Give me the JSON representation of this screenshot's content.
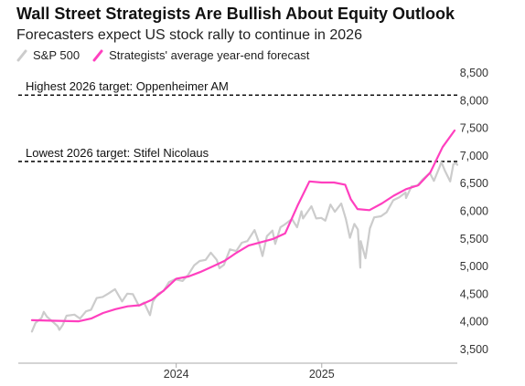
{
  "title": "Wall Street Strategists Are Bullish About Equity Outlook",
  "subtitle": "Forecasters expect US stock rally to continue in 2026",
  "legend": {
    "sp500": "S&P 500",
    "forecast": "Strategists' average year-end forecast"
  },
  "colors": {
    "sp500": "#cccccc",
    "forecast": "#ff3fbf",
    "reference": "#111111",
    "axis": "#aaaaaa"
  },
  "chart_data": {
    "type": "line",
    "title": "Wall Street Strategists Are Bullish About Equity Outlook",
    "subtitle": "Forecasters expect US stock rally to continue in 2026",
    "x_range": [
      "2023-01-01",
      "2025-12-08"
    ],
    "ylim": [
      3500,
      8500
    ],
    "y_ticks": [
      3500,
      4000,
      4500,
      5000,
      5500,
      6000,
      6500,
      7000,
      7500,
      8000,
      8500
    ],
    "y_tick_labels": [
      "3,500",
      "4,000",
      "4,500",
      "5,000",
      "5,500",
      "6,000",
      "6,500",
      "7,000",
      "7,500",
      "8,000",
      "8,500"
    ],
    "x_ticks": [
      "2024-01-01",
      "2025-01-01"
    ],
    "x_tick_labels": [
      "2024",
      "2025"
    ],
    "grid": false,
    "legend_position": "top-left",
    "reference_lines": [
      {
        "label": "Highest 2026 target: Oppenheimer AM",
        "value": 8100
      },
      {
        "label": "Lowest 2026 target: Stifel Nicolaus",
        "value": 6900
      }
    ],
    "series": [
      {
        "name": "S&P 500",
        "points": [
          [
            "2023-01-03",
            3825
          ],
          [
            "2023-01-12",
            3980
          ],
          [
            "2023-01-27",
            4070
          ],
          [
            "2023-02-02",
            4180
          ],
          [
            "2023-02-10",
            4090
          ],
          [
            "2023-02-23",
            4010
          ],
          [
            "2023-03-09",
            3920
          ],
          [
            "2023-03-13",
            3855
          ],
          [
            "2023-03-22",
            3950
          ],
          [
            "2023-03-31",
            4110
          ],
          [
            "2023-04-20",
            4130
          ],
          [
            "2023-05-04",
            4060
          ],
          [
            "2023-05-19",
            4190
          ],
          [
            "2023-06-01",
            4220
          ],
          [
            "2023-06-15",
            4430
          ],
          [
            "2023-06-30",
            4450
          ],
          [
            "2023-07-14",
            4510
          ],
          [
            "2023-07-31",
            4590
          ],
          [
            "2023-08-18",
            4370
          ],
          [
            "2023-08-31",
            4510
          ],
          [
            "2023-09-14",
            4500
          ],
          [
            "2023-09-29",
            4290
          ],
          [
            "2023-10-12",
            4350
          ],
          [
            "2023-10-27",
            4120
          ],
          [
            "2023-11-03",
            4360
          ],
          [
            "2023-11-16",
            4510
          ],
          [
            "2023-11-30",
            4560
          ],
          [
            "2023-12-14",
            4720
          ],
          [
            "2023-12-29",
            4770
          ],
          [
            "2024-01-17",
            4740
          ],
          [
            "2024-01-31",
            4850
          ],
          [
            "2024-02-15",
            5020
          ],
          [
            "2024-02-29",
            5100
          ],
          [
            "2024-03-15",
            5120
          ],
          [
            "2024-03-28",
            5250
          ],
          [
            "2024-04-12",
            5120
          ],
          [
            "2024-04-19",
            4970
          ],
          [
            "2024-04-30",
            5030
          ],
          [
            "2024-05-15",
            5310
          ],
          [
            "2024-05-31",
            5280
          ],
          [
            "2024-06-14",
            5430
          ],
          [
            "2024-06-28",
            5460
          ],
          [
            "2024-07-16",
            5660
          ],
          [
            "2024-07-26",
            5460
          ],
          [
            "2024-08-05",
            5190
          ],
          [
            "2024-08-16",
            5550
          ],
          [
            "2024-08-30",
            5650
          ],
          [
            "2024-09-06",
            5410
          ],
          [
            "2024-09-19",
            5710
          ],
          [
            "2024-09-30",
            5760
          ],
          [
            "2024-10-18",
            5860
          ],
          [
            "2024-10-31",
            5710
          ],
          [
            "2024-11-11",
            6000
          ],
          [
            "2024-11-15",
            5870
          ],
          [
            "2024-12-06",
            6090
          ],
          [
            "2024-12-18",
            5870
          ],
          [
            "2024-12-31",
            5880
          ],
          [
            "2025-01-10",
            5830
          ],
          [
            "2025-01-23",
            6120
          ],
          [
            "2025-02-03",
            5990
          ],
          [
            "2025-02-19",
            6140
          ],
          [
            "2025-03-03",
            5850
          ],
          [
            "2025-03-13",
            5520
          ],
          [
            "2025-03-24",
            5770
          ],
          [
            "2025-04-02",
            5670
          ],
          [
            "2025-04-08",
            4980
          ],
          [
            "2025-04-09",
            5460
          ],
          [
            "2025-04-21",
            5150
          ],
          [
            "2025-05-02",
            5690
          ],
          [
            "2025-05-13",
            5890
          ],
          [
            "2025-05-30",
            5910
          ],
          [
            "2025-06-13",
            5980
          ],
          [
            "2025-06-30",
            6200
          ],
          [
            "2025-07-15",
            6250
          ],
          [
            "2025-07-31",
            6340
          ],
          [
            "2025-08-01",
            6240
          ],
          [
            "2025-08-15",
            6450
          ],
          [
            "2025-08-29",
            6460
          ],
          [
            "2025-09-12",
            6580
          ],
          [
            "2025-09-30",
            6690
          ],
          [
            "2025-10-10",
            6550
          ],
          [
            "2025-10-24",
            6790
          ],
          [
            "2025-10-29",
            6890
          ],
          [
            "2025-11-07",
            6730
          ],
          [
            "2025-11-20",
            6540
          ],
          [
            "2025-11-28",
            6850
          ],
          [
            "2025-12-05",
            6870
          ],
          [
            "2025-12-08",
            6840
          ]
        ]
      },
      {
        "name": "Strategists' average year-end forecast",
        "points": [
          [
            "2023-01-03",
            4030
          ],
          [
            "2023-03-01",
            4020
          ],
          [
            "2023-05-01",
            4010
          ],
          [
            "2023-06-01",
            4060
          ],
          [
            "2023-07-01",
            4160
          ],
          [
            "2023-08-01",
            4230
          ],
          [
            "2023-09-01",
            4280
          ],
          [
            "2023-10-01",
            4300
          ],
          [
            "2023-11-01",
            4400
          ],
          [
            "2023-12-01",
            4570
          ],
          [
            "2024-01-01",
            4780
          ],
          [
            "2024-02-01",
            4820
          ],
          [
            "2024-03-01",
            4900
          ],
          [
            "2024-04-01",
            5000
          ],
          [
            "2024-05-01",
            5100
          ],
          [
            "2024-06-01",
            5250
          ],
          [
            "2024-07-01",
            5380
          ],
          [
            "2024-08-01",
            5440
          ],
          [
            "2024-09-01",
            5500
          ],
          [
            "2024-10-01",
            5600
          ],
          [
            "2024-11-01",
            6100
          ],
          [
            "2024-12-01",
            6540
          ],
          [
            "2025-01-01",
            6520
          ],
          [
            "2025-02-01",
            6520
          ],
          [
            "2025-03-01",
            6480
          ],
          [
            "2025-03-15",
            6220
          ],
          [
            "2025-04-01",
            6040
          ],
          [
            "2025-05-01",
            6020
          ],
          [
            "2025-06-01",
            6140
          ],
          [
            "2025-07-01",
            6280
          ],
          [
            "2025-08-01",
            6400
          ],
          [
            "2025-09-01",
            6470
          ],
          [
            "2025-10-01",
            6700
          ],
          [
            "2025-11-01",
            7160
          ],
          [
            "2025-12-01",
            7460
          ]
        ]
      }
    ]
  }
}
